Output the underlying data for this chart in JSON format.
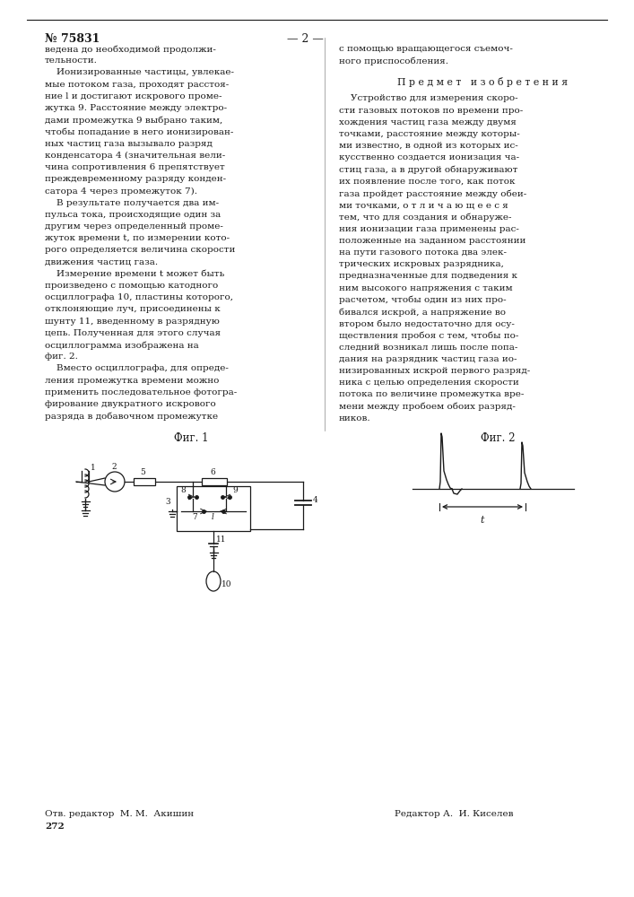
{
  "page_number": "№ 75831",
  "page_indicator": "— 2 —",
  "bg_color": "#ffffff",
  "text_color": "#1a1a1a",
  "col1_text": [
    "ведена до необходимой продолжи-",
    "тельности.",
    "    Ионизированные частицы, увлекае-",
    "мые потоком газа, проходят расстоя-",
    "ние l и достигают искрового проме-",
    "жутка 9. Расстояние между электро-",
    "дами промежутка 9 выбрано таким,",
    "чтобы попадание в него ионизирован-",
    "ных частиц газа вызывало разряд",
    "конденсатора 4 (значительная вели-",
    "чина сопротивления 6 препятствует",
    "преждевременному разряду конден-",
    "сатора 4 через промежуток 7).",
    "    В результате получается два им-",
    "пульса тока, происходящие один за",
    "другим через определенный проме-",
    "жуток времени t, по измерении кото-",
    "рого определяется величина скорости",
    "движения частиц газа.",
    "    Измерение времени t может быть",
    "произведено с помощью катодного",
    "осциллографа 10, пластины которого,",
    "отклоняющие луч, присоединены к",
    "шунту 11, введенному в разрядную",
    "цепь. Полученная для этого случая",
    "осциллограмма изображена на",
    "фиг. 2.",
    "    Вместо осциллографа, для опреде-",
    "ления промежутка времени можно",
    "применить последовательное фотогра-",
    "фирование двукратного искрового",
    "разряда в добавочном промежутке"
  ],
  "col2_text_header": "П р е д м е т   и з о б р е т е н и я",
  "col2_intro_1": "с помощью вращающегося съемоч-",
  "col2_intro_2": "ного приспособления.",
  "col2_body": [
    "    Устройство для измерения скоро-",
    "сти газовых потоков по времени про-",
    "хождения частиц газа между двумя",
    "точками, расстояние между которы-",
    "ми известно, в одной из которых ис-",
    "кусственно создается ионизация ча-",
    "стиц газа, а в другой обнаруживают",
    "их появление после того, как поток",
    "газа пройдет расстояние между обеи-",
    "ми точками, о т л и ч а ю щ е е с я",
    "тем, что для создания и обнаруже-",
    "ния ионизации газа применены рас-",
    "положенные на заданном расстоянии",
    "на пути газового потока два элек-",
    "трических искровых разрядника,",
    "предназначенные для подведения к",
    "ним высокого напряжения с таким",
    "расчетом, чтобы один из них про-",
    "бивался искрой, а напряжение во",
    "втором было недостаточно для осу-",
    "ществления пробоя с тем, чтобы по-",
    "следний возникал лишь после попа-",
    "дания на разрядник частиц газа ио-",
    "низированных искрой первого разряд-",
    "ника с целью определения скорости",
    "потока по величине промежутка вре-",
    "мени между пробоем обоих разряд-",
    "ников."
  ],
  "fig1_label": "Фиг. 1",
  "fig2_label": "Фиг. 2",
  "footer_left": "Отв. редактор  М. М.  Акишин",
  "footer_num": "272",
  "footer_right": "Редактор А.  И. Киселев"
}
